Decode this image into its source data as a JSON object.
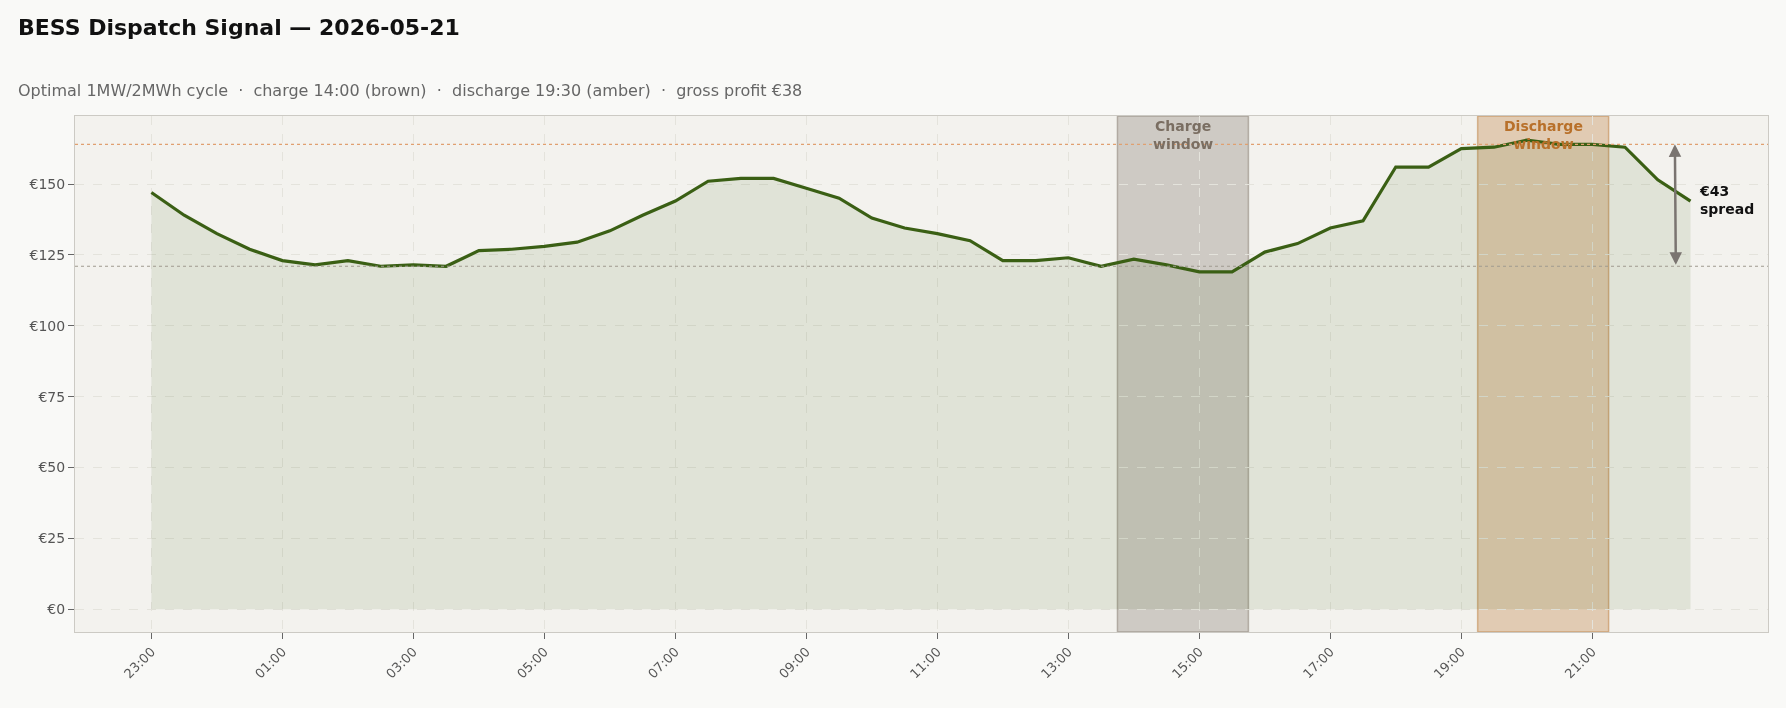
{
  "chart_data": {
    "type": "area",
    "title": "BESS Dispatch Signal — 2026-05-21",
    "subtitle": "Optimal 1MW/2MWh cycle  ·  charge 14:00 (brown)  ·  discharge 19:30 (amber)  ·  gross profit €38",
    "x": [
      "2026-05-20T23:00",
      "2026-05-20T23:30",
      "2026-05-21T00:00",
      "2026-05-21T00:30",
      "2026-05-21T01:00",
      "2026-05-21T01:30",
      "2026-05-21T02:00",
      "2026-05-21T02:30",
      "2026-05-21T03:00",
      "2026-05-21T03:30",
      "2026-05-21T04:00",
      "2026-05-21T04:30",
      "2026-05-21T05:00",
      "2026-05-21T05:30",
      "2026-05-21T06:00",
      "2026-05-21T06:30",
      "2026-05-21T07:00",
      "2026-05-21T07:30",
      "2026-05-21T08:00",
      "2026-05-21T08:30",
      "2026-05-21T09:00",
      "2026-05-21T09:30",
      "2026-05-21T10:00",
      "2026-05-21T10:30",
      "2026-05-21T11:00",
      "2026-05-21T11:30",
      "2026-05-21T12:00",
      "2026-05-21T12:30",
      "2026-05-21T13:00",
      "2026-05-21T13:30",
      "2026-05-21T14:00",
      "2026-05-21T14:30",
      "2026-05-21T15:00",
      "2026-05-21T15:30",
      "2026-05-21T16:00",
      "2026-05-21T16:30",
      "2026-05-21T17:00",
      "2026-05-21T17:30",
      "2026-05-21T18:00",
      "2026-05-21T18:30",
      "2026-05-21T19:00",
      "2026-05-21T19:30",
      "2026-05-21T20:00",
      "2026-05-21T20:30",
      "2026-05-21T21:00",
      "2026-05-21T21:30",
      "2026-05-21T22:00",
      "2026-05-21T22:30"
    ],
    "series": [
      {
        "color": "#3a5f14",
        "values": [
          147,
          139,
          132.5,
          127,
          123,
          121.5,
          123,
          121,
          121.5,
          121,
          126.5,
          127,
          128,
          129.5,
          133.5,
          139,
          144,
          151,
          152,
          152,
          148.5,
          145,
          138,
          134.5,
          132.5,
          130,
          123,
          123,
          124,
          121,
          123.5,
          121.5,
          119,
          119,
          126,
          129,
          134.5,
          137,
          156,
          156,
          162.5,
          163,
          165.5,
          164,
          164,
          163,
          151.5,
          144
        ]
      }
    ],
    "xlim": [
      "2026-05-20T21:50",
      "2026-05-21T23:41"
    ],
    "ylim": [
      -8,
      174
    ],
    "xticks": [
      {
        "value": "2026-05-20T23:00",
        "label": "23:00"
      },
      {
        "value": "2026-05-21T01:00",
        "label": "01:00"
      },
      {
        "value": "2026-05-21T03:00",
        "label": "03:00"
      },
      {
        "value": "2026-05-21T05:00",
        "label": "05:00"
      },
      {
        "value": "2026-05-21T07:00",
        "label": "07:00"
      },
      {
        "value": "2026-05-21T09:00",
        "label": "09:00"
      },
      {
        "value": "2026-05-21T11:00",
        "label": "11:00"
      },
      {
        "value": "2026-05-21T13:00",
        "label": "13:00"
      },
      {
        "value": "2026-05-21T15:00",
        "label": "15:00"
      },
      {
        "value": "2026-05-21T17:00",
        "label": "17:00"
      },
      {
        "value": "2026-05-21T19:00",
        "label": "19:00"
      },
      {
        "value": "2026-05-21T21:00",
        "label": "21:00"
      }
    ],
    "yticks": [
      {
        "value": 0,
        "label": "€0"
      },
      {
        "value": 25,
        "label": "€25"
      },
      {
        "value": 50,
        "label": "€50"
      },
      {
        "value": 75,
        "label": "€75"
      },
      {
        "value": 100,
        "label": "€100"
      },
      {
        "value": 125,
        "label": "€125"
      },
      {
        "value": 150,
        "label": "€150"
      }
    ],
    "ref_lines": [
      {
        "axis": "y",
        "value": 164,
        "color": "#e0a070",
        "line_style": "dotted"
      },
      {
        "axis": "y",
        "value": 121,
        "color": "#a09a90",
        "line_style": "dotted"
      }
    ],
    "bands": [
      {
        "axis": "x",
        "from": "2026-05-21T13:45",
        "to": "2026-05-21T15:45",
        "label": "Charge\nwindow",
        "color": "#7a6e62"
      },
      {
        "axis": "x",
        "from": "2026-05-21T19:15",
        "to": "2026-05-21T21:15",
        "label": "Discharge\nwindow",
        "color": "#b8702a"
      }
    ],
    "annotations": [
      "€43\nspread"
    ],
    "grid": true
  }
}
